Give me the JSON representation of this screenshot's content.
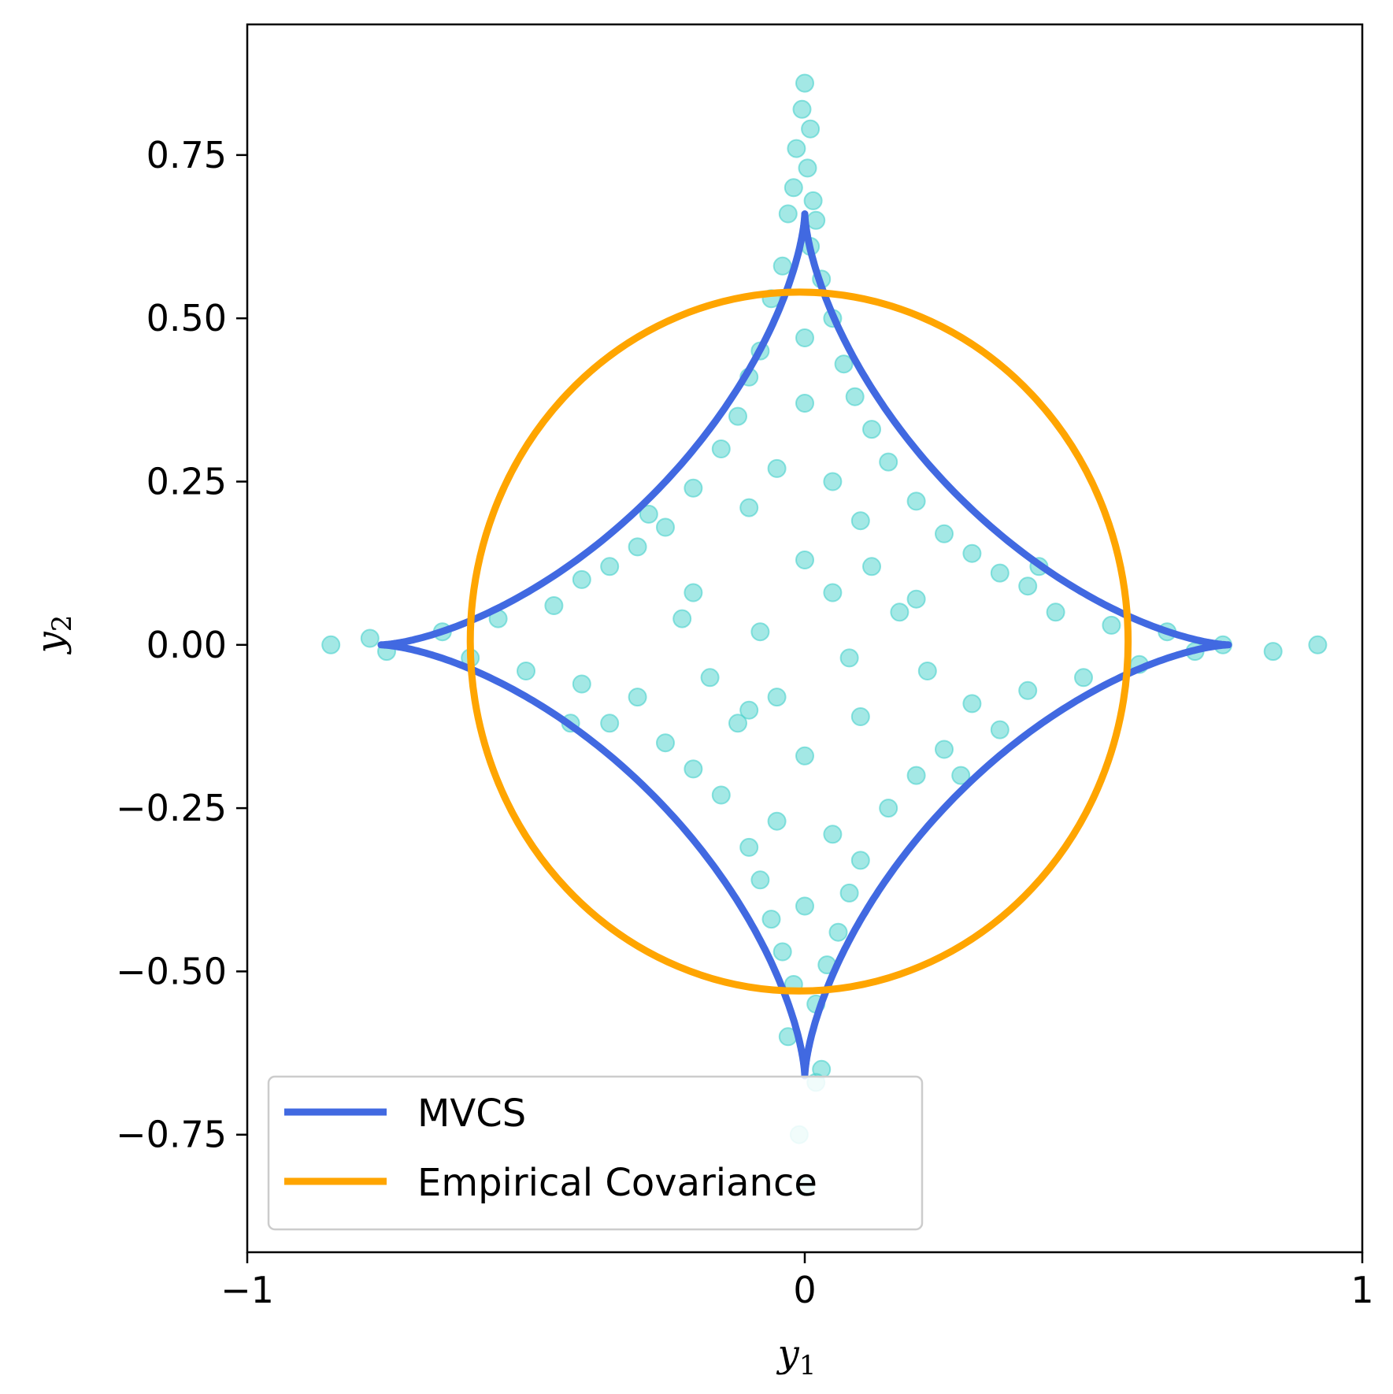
{
  "chart_data": {
    "type": "scatter",
    "title": "",
    "xlabel": "y",
    "xlabel_sub": "1",
    "ylabel": "y",
    "ylabel_sub": "2",
    "xlim": [
      -1,
      1
    ],
    "ylim": [
      -0.93,
      0.95
    ],
    "xticks": [
      -1,
      0,
      1
    ],
    "xtick_labels": [
      "−1",
      "0",
      "1"
    ],
    "yticks": [
      -0.75,
      -0.5,
      -0.25,
      0.0,
      0.25,
      0.5,
      0.75
    ],
    "ytick_labels": [
      "−0.75",
      "−0.50",
      "−0.25",
      "0.00",
      "0.25",
      "0.50",
      "0.75"
    ],
    "grid": false,
    "legend_position": "lower-left",
    "series": [
      {
        "kind": "scatter",
        "color": "#48d1cc",
        "points": [
          [
            0.0,
            0.86
          ],
          [
            -0.005,
            0.82
          ],
          [
            0.01,
            0.79
          ],
          [
            -0.015,
            0.76
          ],
          [
            0.005,
            0.73
          ],
          [
            -0.02,
            0.7
          ],
          [
            0.015,
            0.68
          ],
          [
            -0.03,
            0.66
          ],
          [
            0.02,
            0.65
          ],
          [
            0.01,
            0.61
          ],
          [
            -0.04,
            0.58
          ],
          [
            0.03,
            0.56
          ],
          [
            -0.06,
            0.53
          ],
          [
            0.05,
            0.5
          ],
          [
            0.0,
            0.47
          ],
          [
            -0.08,
            0.45
          ],
          [
            0.07,
            0.43
          ],
          [
            -0.1,
            0.41
          ],
          [
            0.09,
            0.38
          ],
          [
            0.0,
            0.37
          ],
          [
            -0.12,
            0.35
          ],
          [
            0.12,
            0.33
          ],
          [
            -0.15,
            0.3
          ],
          [
            0.15,
            0.28
          ],
          [
            -0.05,
            0.27
          ],
          [
            0.05,
            0.25
          ],
          [
            -0.2,
            0.24
          ],
          [
            0.2,
            0.22
          ],
          [
            -0.1,
            0.21
          ],
          [
            0.1,
            0.19
          ],
          [
            -0.25,
            0.18
          ],
          [
            0.25,
            0.17
          ],
          [
            -0.3,
            0.15
          ],
          [
            0.3,
            0.14
          ],
          [
            0.0,
            0.13
          ],
          [
            -0.35,
            0.12
          ],
          [
            0.35,
            0.11
          ],
          [
            -0.4,
            0.1
          ],
          [
            0.4,
            0.09
          ],
          [
            -0.2,
            0.08
          ],
          [
            0.2,
            0.07
          ],
          [
            -0.45,
            0.06
          ],
          [
            0.45,
            0.05
          ],
          [
            -0.55,
            0.04
          ],
          [
            0.55,
            0.03
          ],
          [
            -0.65,
            0.02
          ],
          [
            0.65,
            0.02
          ],
          [
            -0.78,
            0.01
          ],
          [
            0.75,
            0.0
          ],
          [
            -0.85,
            0.0
          ],
          [
            0.92,
            0.0
          ],
          [
            0.84,
            -0.01
          ],
          [
            -0.75,
            -0.01
          ],
          [
            0.7,
            -0.01
          ],
          [
            -0.6,
            -0.02
          ],
          [
            0.6,
            -0.03
          ],
          [
            -0.5,
            -0.04
          ],
          [
            0.5,
            -0.05
          ],
          [
            -0.4,
            -0.06
          ],
          [
            0.4,
            -0.07
          ],
          [
            -0.3,
            -0.08
          ],
          [
            0.3,
            -0.09
          ],
          [
            -0.1,
            -0.1
          ],
          [
            0.1,
            -0.11
          ],
          [
            -0.35,
            -0.12
          ],
          [
            0.35,
            -0.13
          ],
          [
            -0.25,
            -0.15
          ],
          [
            0.25,
            -0.16
          ],
          [
            0.0,
            -0.17
          ],
          [
            -0.2,
            -0.19
          ],
          [
            0.2,
            -0.2
          ],
          [
            -0.15,
            -0.23
          ],
          [
            0.15,
            -0.25
          ],
          [
            -0.05,
            -0.27
          ],
          [
            0.05,
            -0.29
          ],
          [
            -0.1,
            -0.31
          ],
          [
            0.1,
            -0.33
          ],
          [
            -0.08,
            -0.36
          ],
          [
            0.08,
            -0.38
          ],
          [
            0.0,
            -0.4
          ],
          [
            -0.06,
            -0.42
          ],
          [
            0.06,
            -0.44
          ],
          [
            -0.04,
            -0.47
          ],
          [
            0.04,
            -0.49
          ],
          [
            -0.02,
            -0.52
          ],
          [
            0.02,
            -0.55
          ],
          [
            -0.03,
            -0.6
          ],
          [
            0.03,
            -0.65
          ],
          [
            0.02,
            -0.67
          ],
          [
            -0.01,
            -0.75
          ],
          [
            0.0,
            -0.83
          ],
          [
            0.17,
            0.05
          ],
          [
            -0.17,
            -0.05
          ],
          [
            0.28,
            -0.2
          ],
          [
            -0.28,
            0.2
          ],
          [
            0.12,
            0.12
          ],
          [
            -0.12,
            -0.12
          ],
          [
            0.22,
            -0.04
          ],
          [
            -0.22,
            0.04
          ],
          [
            0.08,
            -0.02
          ],
          [
            -0.08,
            0.02
          ],
          [
            0.42,
            0.12
          ],
          [
            -0.42,
            -0.12
          ],
          [
            0.05,
            0.08
          ],
          [
            -0.05,
            -0.08
          ]
        ]
      },
      {
        "name": "MVCS",
        "kind": "astroid",
        "color": "#4169e1",
        "a_x": 0.76,
        "a_y": 0.66
      },
      {
        "name": "Empirical Covariance",
        "kind": "ellipse",
        "color": "#ffa500",
        "cx": -0.01,
        "cy": 0.005,
        "rx": 0.59,
        "ry": 0.535
      }
    ]
  }
}
